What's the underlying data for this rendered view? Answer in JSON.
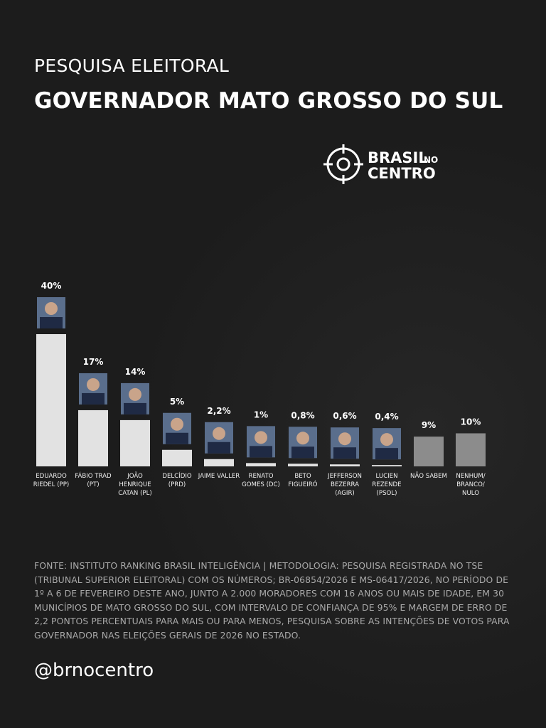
{
  "chart_data": {
    "type": "bar",
    "kicker": "PESQUISA ELEITORAL",
    "title": "GOVERNADOR MATO GROSSO DO SUL",
    "logo": {
      "word1": "BRASIL",
      "word2": "NO",
      "word3": "CENTRO"
    },
    "categories": [
      "EDUARDO RIEDEL (PP)",
      "FÁBIO TRAD (PT)",
      "JOÃO HENRIQUE CATAN (PL)",
      "DELCÍDIO (PRD)",
      "JAIME VALLER",
      "RENATO GOMES (DC)",
      "BETO FIGUEIRÓ",
      "JEFFERSON BEZERRA (AGIR)",
      "LUCIEN REZENDE (PSOL)",
      "NÃO SABEM",
      "NENHUM/ BRANCO/ NULO"
    ],
    "values": [
      40,
      17,
      14,
      5,
      2.2,
      1,
      0.8,
      0.6,
      0.4,
      9,
      10
    ],
    "value_labels": [
      "40%",
      "17%",
      "14%",
      "5%",
      "2,2%",
      "1%",
      "0,8%",
      "0,6%",
      "0,4%",
      "9%",
      "10%"
    ],
    "colors": [
      "#e2e2e2",
      "#e2e2e2",
      "#e2e2e2",
      "#e2e2e2",
      "#e2e2e2",
      "#e2e2e2",
      "#e2e2e2",
      "#e2e2e2",
      "#e2e2e2",
      "#8c8c8c",
      "#8c8c8c"
    ],
    "source": "FONTE: INSTITUTO RANKING BRASIL INTELIGÊNCIA | METODOLOGIA: PESQUISA REGISTRADA NO TSE (TRIBUNAL SUPERIOR ELEITORAL) COM OS NÚMEROS; BR-06854/2026 E MS-06417/2026, NO PERÍODO DE 1º A 6 DE FEVEREIRO DESTE ANO, JUNTO A 2.000 MORADORES COM 16 ANOS OU MAIS DE IDADE, EM 30 MUNICÍPIOS DE MATO GROSSO DO SUL, COM INTERVALO DE CONFIANÇA DE 95% E MARGEM DE ERRO DE 2,2 PONTOS PERCENTUAIS PARA MAIS OU PARA MENOS, PESQUISA SOBRE AS INTENÇÕES DE VOTOS PARA GOVERNADOR NAS ELEIÇÕES GERAIS DE 2026 NO ESTADO.",
    "handle": "@brnocentro"
  }
}
